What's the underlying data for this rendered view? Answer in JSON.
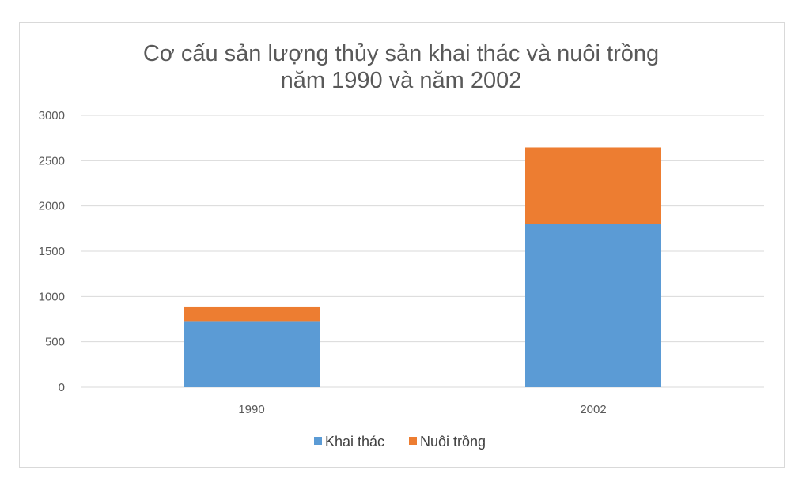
{
  "chart_data": {
    "type": "bar",
    "stacked": true,
    "title_lines": [
      "Cơ cấu sản lượng thủy sản khai thác và nuôi trồng",
      "năm 1990 và năm 2002"
    ],
    "categories": [
      "1990",
      "2002"
    ],
    "series": [
      {
        "name": "Khai thác",
        "color": "#5b9bd5",
        "values": [
          729,
          1802
        ]
      },
      {
        "name": "Nuôi trồng",
        "color": "#ed7d31",
        "values": [
          161,
          845
        ]
      }
    ],
    "ylim": [
      0,
      3000
    ],
    "yticks": [
      0,
      500,
      1000,
      1500,
      2000,
      2500,
      3000
    ],
    "grid": true,
    "legend_position": "bottom"
  }
}
